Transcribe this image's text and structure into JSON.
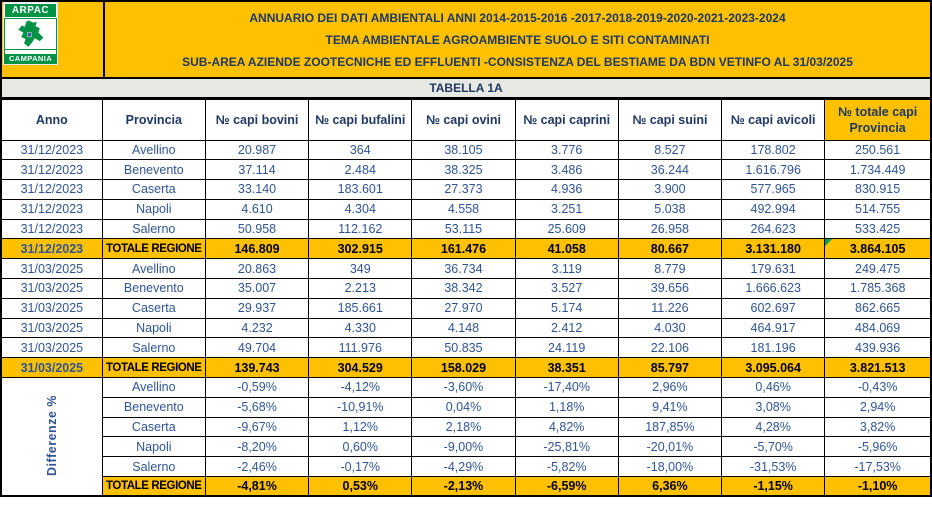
{
  "colors": {
    "accent_orange": "#FFC000",
    "title_navy": "#1F3864",
    "data_blue": "#2F5597",
    "strip_gray": "#E8E8E3",
    "logo_green": "#009245",
    "note_marker_green": "#00A04A",
    "border_black": "#000000"
  },
  "logo": {
    "name": "ARPAC",
    "region": "CAMPANIA"
  },
  "header": {
    "lines": [
      "ANNUARIO DEI DATI AMBIENTALI ANNI 2014-2015-2016 -2017-2018-2019-2020-2021-2023-2024",
      "TEMA AMBIENTALE AGROAMBIENTE SUOLO E SITI CONTAMINATI",
      "SUB-AREA AZIENDE ZOOTECNICHE ED EFFLUENTI -CONSISTENZA DEL BESTIAME  DA BDN VETINFO AL 31/03/2025"
    ]
  },
  "table_label": "TABELLA 1A",
  "table": {
    "columns": [
      "Anno",
      "Provincia",
      "№ capi bovini",
      "№ capi bufalini",
      "№ capi ovini",
      "№ capi caprini",
      "№ capi suini",
      "№ capi avicoli"
    ],
    "total_col": {
      "line1": "№ totale capi",
      "line2": "Provincia"
    },
    "blocks": [
      {
        "type": "date",
        "anno": "31/12/2023",
        "rows": [
          {
            "provincia": "Avellino",
            "values": [
              "20.987",
              "364",
              "38.105",
              "3.776",
              "8.527",
              "178.802",
              "250.561"
            ]
          },
          {
            "provincia": "Benevento",
            "values": [
              "37.114",
              "2.484",
              "38.325",
              "3.486",
              "36.244",
              "1.616.796",
              "1.734.449"
            ]
          },
          {
            "provincia": "Caserta",
            "values": [
              "33.140",
              "183.601",
              "27.373",
              "4.936",
              "3.900",
              "577.965",
              "830.915"
            ]
          },
          {
            "provincia": "Napoli",
            "values": [
              "4.610",
              "4.304",
              "4.558",
              "3.251",
              "5.038",
              "492.994",
              "514.755"
            ]
          },
          {
            "provincia": "Salerno",
            "values": [
              "50.958",
              "112.162",
              "53.115",
              "25.609",
              "26.958",
              "264.623",
              "533.425"
            ]
          }
        ],
        "totale": {
          "label": "TOTALE REGIONE",
          "values": [
            "146.809",
            "302.915",
            "161.476",
            "41.058",
            "80.667",
            "3.131.180",
            "3.864.105"
          ],
          "has_note_marker": true
        }
      },
      {
        "type": "date",
        "anno": "31/03/2025",
        "rows": [
          {
            "provincia": "Avellino",
            "values": [
              "20.863",
              "349",
              "36.734",
              "3.119",
              "8.779",
              "179.631",
              "249.475"
            ]
          },
          {
            "provincia": "Benevento",
            "values": [
              "35.007",
              "2.213",
              "38.342",
              "3.527",
              "39.656",
              "1.666.623",
              "1.785.368"
            ]
          },
          {
            "provincia": "Caserta",
            "values": [
              "29.937",
              "185.661",
              "27.970",
              "5.174",
              "11.226",
              "602.697",
              "862.665"
            ]
          },
          {
            "provincia": "Napoli",
            "values": [
              "4.232",
              "4.330",
              "4.148",
              "2.412",
              "4.030",
              "464.917",
              "484.069"
            ]
          },
          {
            "provincia": "Salerno",
            "values": [
              "49.704",
              "111.976",
              "50.835",
              "24.119",
              "22.106",
              "181.196",
              "439.936"
            ]
          }
        ],
        "totale": {
          "label": "TOTALE REGIONE",
          "values": [
            "139.743",
            "304.529",
            "158.029",
            "38.351",
            "85.797",
            "3.095.064",
            "3.821.513"
          ],
          "has_note_marker": false
        }
      },
      {
        "type": "diff",
        "anno_label": "Differenze %",
        "rows": [
          {
            "provincia": "Avellino",
            "values": [
              "-0,59%",
              "-4,12%",
              "-3,60%",
              "-17,40%",
              "2,96%",
              "0,46%",
              "-0,43%"
            ]
          },
          {
            "provincia": "Benevento",
            "values": [
              "-5,68%",
              "-10,91%",
              "0,04%",
              "1,18%",
              "9,41%",
              "3,08%",
              "2,94%"
            ]
          },
          {
            "provincia": "Caserta",
            "values": [
              "-9,67%",
              "1,12%",
              "2,18%",
              "4,82%",
              "187,85%",
              "4,28%",
              "3,82%"
            ]
          },
          {
            "provincia": "Napoli",
            "values": [
              "-8,20%",
              "0,60%",
              "-9,00%",
              "-25,81%",
              "-20,01%",
              "-5,70%",
              "-5,96%"
            ]
          },
          {
            "provincia": "Salerno",
            "values": [
              "-2,46%",
              "-0,17%",
              "-4,29%",
              "-5,82%",
              "-18,00%",
              "-31,53%",
              "-17,53%"
            ]
          }
        ],
        "totale": {
          "label": "TOTALE REGIONE",
          "values": [
            "-4,81%",
            "0,53%",
            "-2,13%",
            "-6,59%",
            "6,36%",
            "-1,15%",
            "-1,10%"
          ],
          "has_note_marker": false
        }
      }
    ]
  }
}
